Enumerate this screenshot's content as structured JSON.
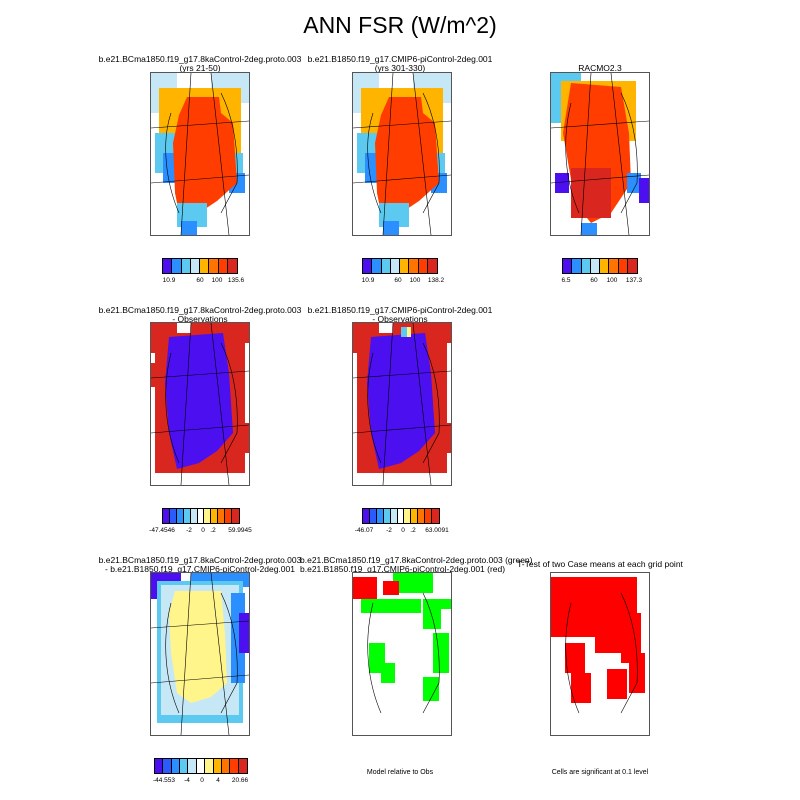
{
  "title": "ANN FSR (W/m^2)",
  "colors": {
    "purple": "#4b0ff0",
    "blue": "#2b8fff",
    "lightblue": "#5ccaf0",
    "paleblue": "#c6e7f6",
    "yellow": "#fff58a",
    "orange": "#ffb400",
    "redorange": "#ff3d00",
    "red": "#d9261e",
    "brightred": "#ff0000",
    "green": "#00ff00"
  },
  "row1": {
    "p1": {
      "line1": "b.e21.BCma1850.f19_g17.8kaControl-2deg.proto.003",
      "line2": "(yrs 21-50)",
      "labels": [
        "10.9",
        "60",
        "100",
        "135.6"
      ]
    },
    "p2": {
      "line1": "b.e21.B1850.f19_g17.CMIP6-piControl-2deg.001",
      "line2": "(yrs 301-330)",
      "labels": [
        "10.9",
        "60",
        "100",
        "138.2"
      ]
    },
    "p3": {
      "line1": "RACMO2.3",
      "labels": [
        "6.5",
        "60",
        "100",
        "137.3"
      ]
    }
  },
  "row2": {
    "p1": {
      "line1": "b.e21.BCma1850.f19_g17.8kaControl-2deg.proto.003",
      "line2": "- Observations",
      "labels": [
        "-47.4546",
        "-2",
        "0",
        ".2",
        "59.9945"
      ]
    },
    "p2": {
      "line1": "b.e21.B1850.f19_g17.CMIP6-piControl-2deg.001",
      "line2": "- Observations",
      "labels": [
        "-46.07",
        "-2",
        "0",
        ".2",
        "63.0091"
      ]
    }
  },
  "row3": {
    "p1": {
      "line1": "b.e21.BCma1850.f19_g17.8kaControl-2deg.proto.003",
      "line2": "- b.e21.B1850.f19_g17.CMIP6-piControl-2deg.001",
      "labels": [
        "-44.553",
        "-4",
        "0",
        "4",
        "20.66"
      ]
    },
    "p2": {
      "line1": "b.e21.BCma1850.f19_g17.8kaControl-2deg.proto.003 (green)",
      "line2": "b.e21.B1850.f19_g17.CMIP6-piControl-2deg.001 (red)",
      "note": "Model relative to Obs"
    },
    "p3": {
      "line1": "T-Test of two Case means at each grid point",
      "note": "Cells are significant at 0.1 level"
    }
  }
}
